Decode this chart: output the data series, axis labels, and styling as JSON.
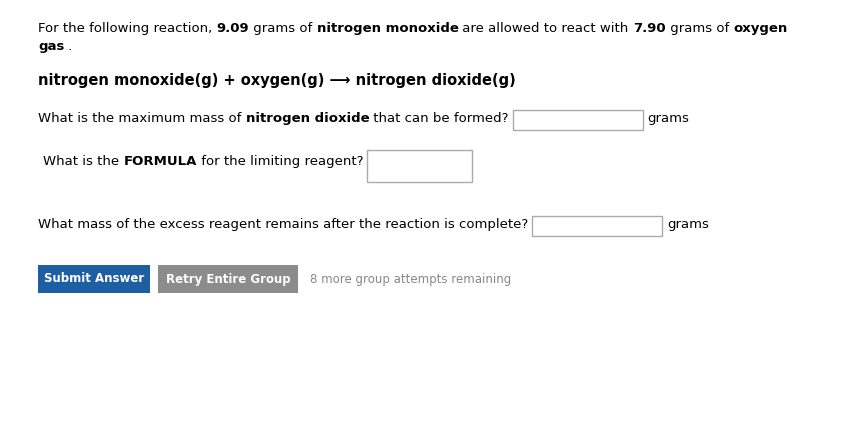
{
  "bg_color": "#ffffff",
  "text_color": "#000000",
  "box_edge_color": "#aaaaaa",
  "box_bg": "#ffffff",
  "btn1_label": "Submit Answer",
  "btn1_color": "#1e5fa3",
  "btn1_text_color": "#ffffff",
  "btn2_label": "Retry Entire Group",
  "btn2_color": "#8c8c8c",
  "btn2_text_color": "#ffffff",
  "attempts_text": "8 more group attempts remaining",
  "attempts_color": "#888888",
  "font_size": 9.5,
  "reaction_font_size": 10.5,
  "small_font_size": 8.5
}
